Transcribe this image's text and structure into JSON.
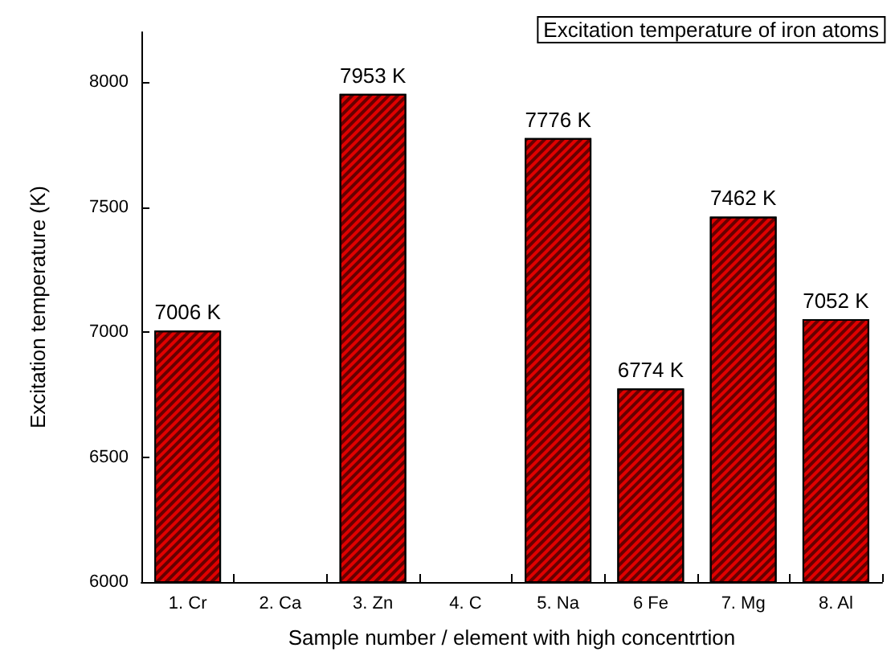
{
  "chart_data": {
    "type": "bar",
    "title": "Excitation temperature of iron atoms",
    "xlabel": "Sample number / element with high concentrtion",
    "ylabel": "Excitation temperature (K)",
    "categories": [
      "1. Cr",
      "2. Ca",
      "3. Zn",
      "4. C",
      "5. Na",
      "6 Fe",
      "7. Mg",
      "8. Al"
    ],
    "values": [
      7006,
      null,
      7953,
      null,
      7776,
      6774,
      7462,
      7052
    ],
    "value_labels": [
      "7006 K",
      null,
      "7953 K",
      null,
      "7776 K",
      "6774 K",
      "7462 K",
      "7052 K"
    ],
    "color": "#e00000",
    "ylim": [
      6000,
      8200
    ],
    "yticks": [
      6000,
      6500,
      7000,
      7500,
      8000
    ],
    "grid": false
  }
}
